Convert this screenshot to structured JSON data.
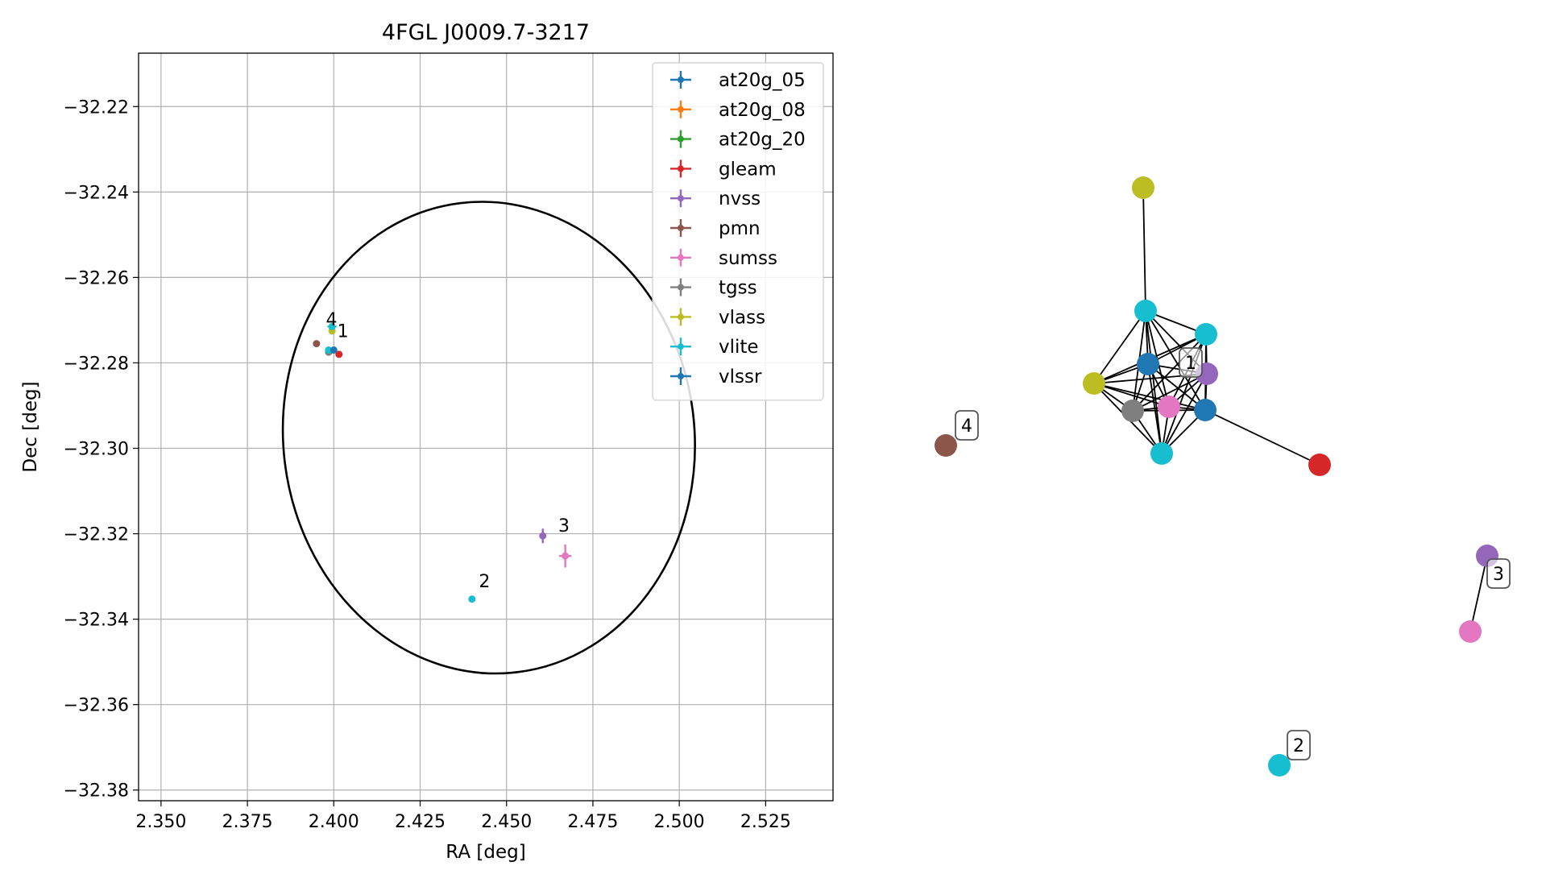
{
  "chart_data": [
    {
      "type": "scatter",
      "title": "4FGL J0009.7-3217",
      "xlabel": "RA [deg]",
      "ylabel": "Dec [deg]",
      "xlim": [
        2.3435,
        2.5445
      ],
      "ylim": [
        -32.3825,
        -32.2075
      ],
      "xticks": [
        {
          "v": 2.35,
          "label": "2.350"
        },
        {
          "v": 2.375,
          "label": "2.375"
        },
        {
          "v": 2.4,
          "label": "2.400"
        },
        {
          "v": 2.425,
          "label": "2.425"
        },
        {
          "v": 2.45,
          "label": "2.450"
        },
        {
          "v": 2.475,
          "label": "2.475"
        },
        {
          "v": 2.5,
          "label": "2.500"
        },
        {
          "v": 2.525,
          "label": "2.525"
        }
      ],
      "yticks": [
        {
          "v": -32.22,
          "label": "−32.22"
        },
        {
          "v": -32.24,
          "label": "−32.24"
        },
        {
          "v": -32.26,
          "label": "−32.26"
        },
        {
          "v": -32.28,
          "label": "−32.28"
        },
        {
          "v": -32.3,
          "label": "−32.30"
        },
        {
          "v": -32.32,
          "label": "−32.32"
        },
        {
          "v": -32.34,
          "label": "−32.34"
        },
        {
          "v": -32.36,
          "label": "−32.36"
        },
        {
          "v": -32.38,
          "label": "−32.38"
        }
      ],
      "grid": true,
      "legend_position": "top-right",
      "ellipse": {
        "ra": 2.4449,
        "dec": -32.2975,
        "ra_semi": 0.0595,
        "dec_semi": 0.0553,
        "angle_deg": -7,
        "color": "#000000"
      },
      "series": [
        {
          "name": "at20g_05",
          "color": "#1f77b4",
          "points": []
        },
        {
          "name": "at20g_08",
          "color": "#ff7f0e",
          "points": []
        },
        {
          "name": "at20g_20",
          "color": "#2ca02c",
          "points": []
        },
        {
          "name": "gleam",
          "color": "#d62728",
          "points": [
            {
              "ra": 2.4015,
              "dec": -32.278,
              "ra_err": 0,
              "dec_err": 0
            }
          ]
        },
        {
          "name": "nvss",
          "color": "#9467bd",
          "points": [
            {
              "ra": 2.4605,
              "dec": -32.3205,
              "ra_err": 0.0008,
              "dec_err": 0.0017
            }
          ]
        },
        {
          "name": "pmn",
          "color": "#8c564b",
          "points": [
            {
              "ra": 2.395,
              "dec": -32.2755,
              "ra_err": 0,
              "dec_err": 0
            }
          ]
        },
        {
          "name": "sumss",
          "color": "#e377c2",
          "points": [
            {
              "ra": 2.467,
              "dec": -32.3252,
              "ra_err": 0.0018,
              "dec_err": 0.0027
            }
          ]
        },
        {
          "name": "tgss",
          "color": "#7f7f7f",
          "points": [
            {
              "ra": 2.3985,
              "dec": -32.2775,
              "ra_err": 0,
              "dec_err": 0
            }
          ]
        },
        {
          "name": "vlass",
          "color": "#bcbd22",
          "points": [
            {
              "ra": 2.3995,
              "dec": -32.2725,
              "ra_err": 0,
              "dec_err": 0
            }
          ]
        },
        {
          "name": "vlite",
          "color": "#17becf",
          "points": [
            {
              "ra": 2.3995,
              "dec": -32.2715,
              "ra_err": 0.0013,
              "dec_err": 0
            },
            {
              "ra": 2.3985,
              "dec": -32.277,
              "ra_err": 0,
              "dec_err": 0
            },
            {
              "ra": 2.44,
              "dec": -32.3353,
              "ra_err": 0,
              "dec_err": 0
            }
          ]
        },
        {
          "name": "vlssr",
          "color": "#1f77b4",
          "points": [
            {
              "ra": 2.4,
              "dec": -32.277,
              "ra_err": 0,
              "dec_err": 0
            }
          ]
        }
      ],
      "point_labels": [
        {
          "text": "4",
          "ra": 2.3977,
          "dec": -32.2712
        },
        {
          "text": "1",
          "ra": 2.401,
          "dec": -32.274
        },
        {
          "text": "2",
          "ra": 2.442,
          "dec": -32.3325
        },
        {
          "text": "3",
          "ra": 2.465,
          "dec": -32.3195
        }
      ]
    },
    {
      "type": "network",
      "nodes": [
        {
          "id": "n1",
          "color": "#bcbd22"
        },
        {
          "id": "n2",
          "color": "#17becf"
        },
        {
          "id": "n3",
          "color": "#17becf"
        },
        {
          "id": "n4",
          "color": "#1f77b4"
        },
        {
          "id": "n5",
          "color": "#9467bd"
        },
        {
          "id": "n6",
          "color": "#bcbd22"
        },
        {
          "id": "n7",
          "color": "#7f7f7f"
        },
        {
          "id": "n8",
          "color": "#e377c2"
        },
        {
          "id": "n9",
          "color": "#1f77b4"
        },
        {
          "id": "n10",
          "color": "#17becf"
        },
        {
          "id": "n11",
          "color": "#d62728"
        },
        {
          "id": "n12",
          "color": "#8c564b"
        },
        {
          "id": "n13",
          "color": "#9467bd"
        },
        {
          "id": "n14",
          "color": "#e377c2"
        },
        {
          "id": "n15",
          "color": "#17becf"
        }
      ],
      "edges": [
        [
          "n1",
          "n2"
        ],
        [
          "n2",
          "n4"
        ],
        [
          "n2",
          "n5"
        ],
        [
          "n2",
          "n6"
        ],
        [
          "n2",
          "n7"
        ],
        [
          "n2",
          "n8"
        ],
        [
          "n2",
          "n9"
        ],
        [
          "n2",
          "n10"
        ],
        [
          "n2",
          "n3"
        ],
        [
          "n3",
          "n4"
        ],
        [
          "n3",
          "n5"
        ],
        [
          "n3",
          "n7"
        ],
        [
          "n3",
          "n8"
        ],
        [
          "n3",
          "n9"
        ],
        [
          "n3",
          "n10"
        ],
        [
          "n3",
          "n6"
        ],
        [
          "n4",
          "n5"
        ],
        [
          "n4",
          "n6"
        ],
        [
          "n4",
          "n7"
        ],
        [
          "n4",
          "n8"
        ],
        [
          "n4",
          "n9"
        ],
        [
          "n4",
          "n10"
        ],
        [
          "n5",
          "n6"
        ],
        [
          "n5",
          "n7"
        ],
        [
          "n5",
          "n8"
        ],
        [
          "n5",
          "n9"
        ],
        [
          "n5",
          "n10"
        ],
        [
          "n6",
          "n7"
        ],
        [
          "n6",
          "n8"
        ],
        [
          "n6",
          "n9"
        ],
        [
          "n6",
          "n10"
        ],
        [
          "n7",
          "n8"
        ],
        [
          "n7",
          "n9"
        ],
        [
          "n7",
          "n10"
        ],
        [
          "n8",
          "n9"
        ],
        [
          "n8",
          "n10"
        ],
        [
          "n9",
          "n10"
        ],
        [
          "n9",
          "n11"
        ],
        [
          "n13",
          "n14"
        ]
      ],
      "labels": [
        {
          "text": "1",
          "node": "n5"
        },
        {
          "text": "4",
          "node": "n12"
        },
        {
          "text": "3",
          "node": "n13"
        },
        {
          "text": "2",
          "node": "n15"
        }
      ]
    }
  ]
}
